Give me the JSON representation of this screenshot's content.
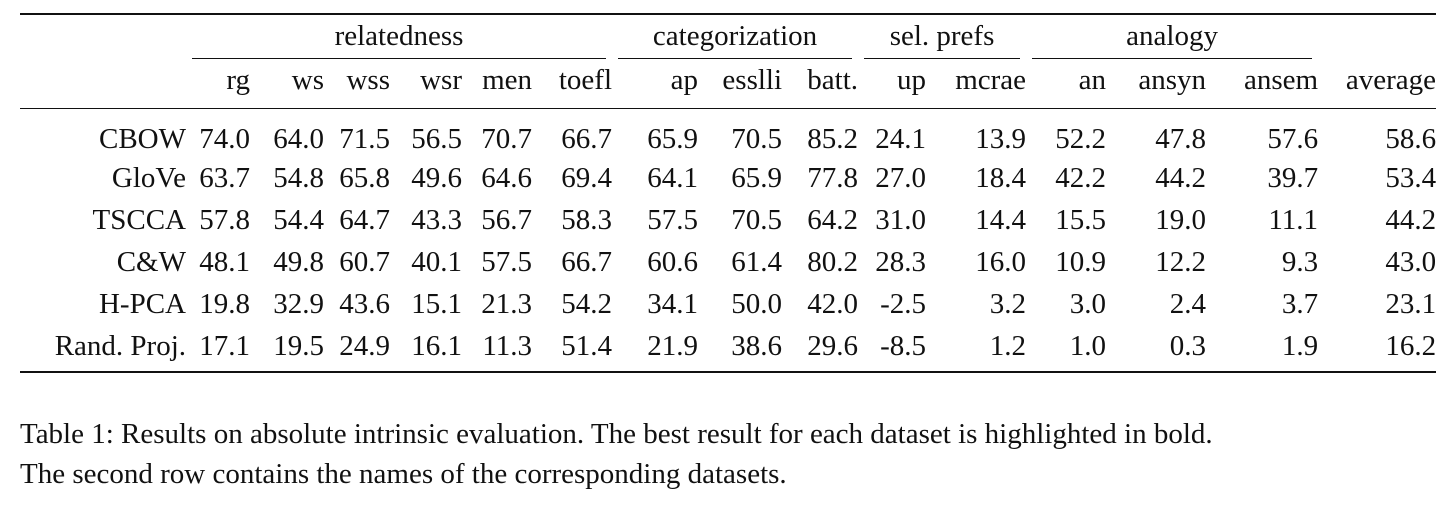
{
  "table": {
    "groups": [
      {
        "label": "relatedness",
        "span": 6
      },
      {
        "label": "categorization",
        "span": 3
      },
      {
        "label": "sel. prefs",
        "span": 2
      },
      {
        "label": "analogy",
        "span": 3
      }
    ],
    "datasets": [
      "rg",
      "ws",
      "wss",
      "wsr",
      "men",
      "toefl",
      "ap",
      "esslli",
      "batt.",
      "up",
      "mcrae",
      "an",
      "ansyn",
      "ansem",
      "average"
    ],
    "rows": [
      {
        "method": "CBOW",
        "values": [
          "74.0",
          "64.0",
          "71.5",
          "56.5",
          "70.7",
          "66.7",
          "65.9",
          "70.5",
          "85.2",
          "24.1",
          "13.9",
          "52.2",
          "47.8",
          "57.6",
          "58.6"
        ],
        "bold": [
          true,
          true,
          true,
          true,
          true,
          false,
          true,
          true,
          true,
          false,
          false,
          true,
          true,
          true,
          true
        ]
      },
      {
        "method": "GloVe",
        "values": [
          "63.7",
          "54.8",
          "65.8",
          "49.6",
          "64.6",
          "69.4",
          "64.1",
          "65.9",
          "77.8",
          "27.0",
          "18.4",
          "42.2",
          "44.2",
          "39.7",
          "53.4"
        ],
        "bold": [
          false,
          false,
          false,
          false,
          false,
          true,
          false,
          false,
          false,
          false,
          true,
          false,
          false,
          false,
          false
        ]
      },
      {
        "method": "TSCCA",
        "values": [
          "57.8",
          "54.4",
          "64.7",
          "43.3",
          "56.7",
          "58.3",
          "57.5",
          "70.5",
          "64.2",
          "31.0",
          "14.4",
          "15.5",
          "19.0",
          "11.1",
          "44.2"
        ],
        "bold": [
          false,
          false,
          false,
          false,
          false,
          false,
          false,
          true,
          false,
          true,
          false,
          false,
          false,
          false,
          false
        ]
      },
      {
        "method": "C&W",
        "values": [
          "48.1",
          "49.8",
          "60.7",
          "40.1",
          "57.5",
          "66.7",
          "60.6",
          "61.4",
          "80.2",
          "28.3",
          "16.0",
          "10.9",
          "12.2",
          "9.3",
          "43.0"
        ],
        "bold": [
          false,
          false,
          false,
          false,
          false,
          false,
          false,
          false,
          false,
          false,
          false,
          false,
          false,
          false,
          false
        ]
      },
      {
        "method": "H-PCA",
        "values": [
          "19.8",
          "32.9",
          "43.6",
          "15.1",
          "21.3",
          "54.2",
          "34.1",
          "50.0",
          "42.0",
          "-2.5",
          "3.2",
          "3.0",
          "2.4",
          "3.7",
          "23.1"
        ],
        "bold": [
          false,
          false,
          false,
          false,
          false,
          false,
          false,
          false,
          false,
          false,
          false,
          false,
          false,
          false,
          false
        ]
      },
      {
        "method": "Rand. Proj.",
        "values": [
          "17.1",
          "19.5",
          "24.9",
          "16.1",
          "11.3",
          "51.4",
          "21.9",
          "38.6",
          "29.6",
          "-8.5",
          "1.2",
          "1.0",
          "0.3",
          "1.9",
          "16.2"
        ],
        "bold": [
          false,
          false,
          false,
          false,
          false,
          false,
          false,
          false,
          false,
          false,
          false,
          false,
          false,
          false,
          false
        ]
      }
    ]
  },
  "caption": {
    "line1": "Table 1: Results on absolute intrinsic evaluation. The best result for each dataset is highlighted in bold.",
    "line2": "The second row contains the names of the corresponding datasets."
  }
}
